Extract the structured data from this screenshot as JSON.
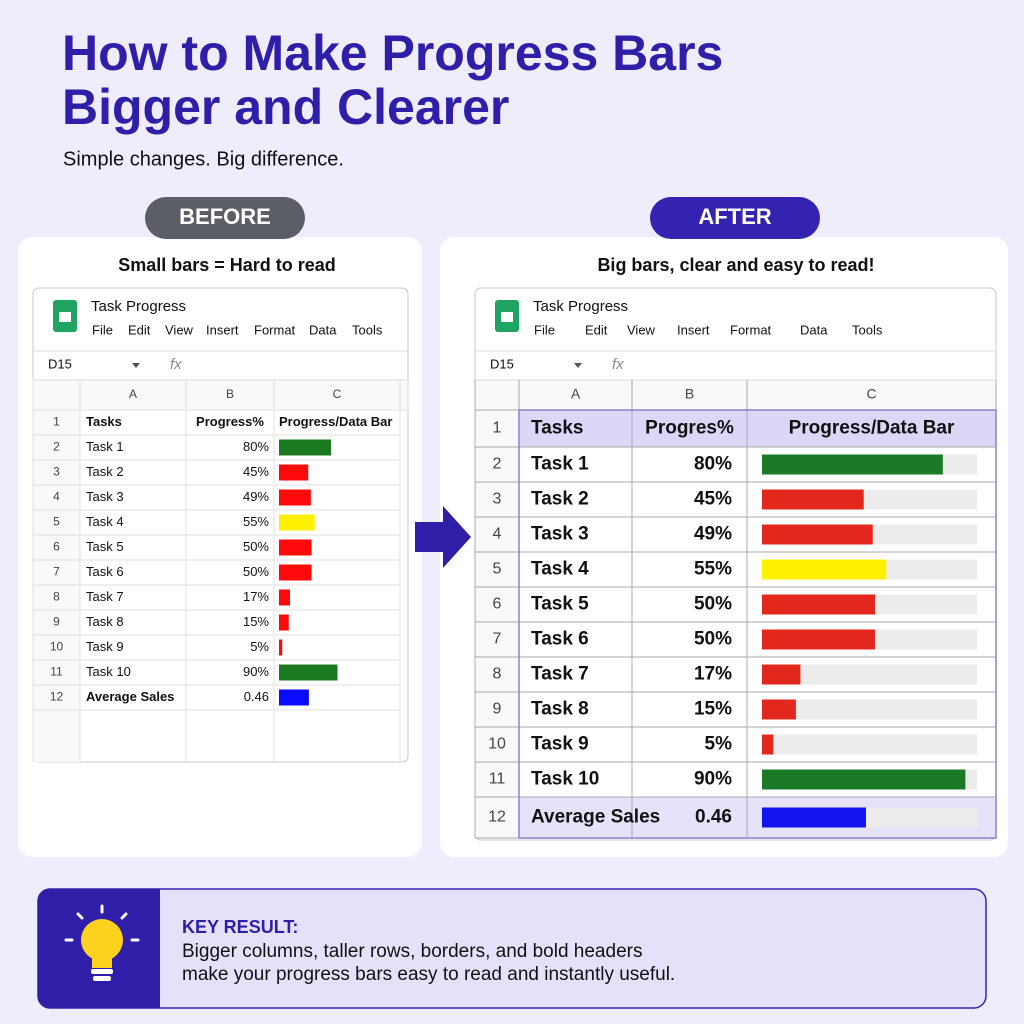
{
  "header": {
    "title_lines": [
      "How to Make Progress Bars",
      "Bigger and Clearer"
    ],
    "subtitle": "Simple changes. Big difference."
  },
  "before": {
    "badge": "BEFORE",
    "caption": "Small bars = Hard to read",
    "sheet": {
      "doc_title": "Task Progress",
      "menu": [
        "File",
        "Edit",
        "View",
        "Insert",
        "Format",
        "Data",
        "Tools"
      ],
      "cell_ref": "D15",
      "fx": "fx",
      "columns": [
        "A",
        "B",
        "C"
      ],
      "header_row_num": "1",
      "headers": [
        "Tasks",
        "Progress%",
        "Progress/Data Bar"
      ],
      "rows": [
        {
          "num": "2",
          "task": "Task 1",
          "progress": "80%",
          "bar_color": "#1b7a1f"
        },
        {
          "num": "3",
          "task": "Task 2",
          "progress": "45%",
          "bar_color": "#ff0a0a"
        },
        {
          "num": "4",
          "task": "Task 3",
          "progress": "49%",
          "bar_color": "#ff0a0a"
        },
        {
          "num": "5",
          "task": "Task 4",
          "progress": "55%",
          "bar_color": "#fff000"
        },
        {
          "num": "6",
          "task": "Task 5",
          "progress": "50%",
          "bar_color": "#ff0a0a"
        },
        {
          "num": "7",
          "task": "Task 6",
          "progress": "50%",
          "bar_color": "#ff0a0a"
        },
        {
          "num": "8",
          "task": "Task 7",
          "progress": "17%",
          "bar_color": "#ff0a0a"
        },
        {
          "num": "9",
          "task": "Task 8",
          "progress": "15%",
          "bar_color": "#ff0a0a"
        },
        {
          "num": "10",
          "task": "Task 9",
          "progress": "5%",
          "bar_color": "#ff0a0a"
        },
        {
          "num": "11",
          "task": "Task 10",
          "progress": "90%",
          "bar_color": "#1b7a1f"
        },
        {
          "num": "12",
          "task": "Average Sales",
          "progress": "0.46",
          "bar_color": "#0a0aff"
        }
      ]
    }
  },
  "after": {
    "badge": "AFTER",
    "caption": "Big bars, clear and easy to read!",
    "sheet": {
      "doc_title": "Task Progress",
      "menu": [
        "File",
        "Edit",
        "View",
        "Insert",
        "Format",
        "Data",
        "Tools"
      ],
      "cell_ref": "D15",
      "fx": "fx",
      "columns": [
        "A",
        "B",
        "C"
      ],
      "header_row_num": "1",
      "headers": [
        "Tasks",
        "Progres%",
        "Progress/Data Bar"
      ],
      "rows": [
        {
          "num": "2",
          "task": "Task 1",
          "progress": "80%",
          "bar_color": "#1b7a28"
        },
        {
          "num": "3",
          "task": "Task 2",
          "progress": "45%",
          "bar_color": "#e2281c"
        },
        {
          "num": "4",
          "task": "Task 3",
          "progress": "49%",
          "bar_color": "#e2281c"
        },
        {
          "num": "5",
          "task": "Task 4",
          "progress": "55%",
          "bar_color": "#fff200"
        },
        {
          "num": "6",
          "task": "Task 5",
          "progress": "50%",
          "bar_color": "#e2281c"
        },
        {
          "num": "7",
          "task": "Task 6",
          "progress": "50%",
          "bar_color": "#e2281c"
        },
        {
          "num": "8",
          "task": "Task 7",
          "progress": "17%",
          "bar_color": "#e2281c"
        },
        {
          "num": "9",
          "task": "Task 8",
          "progress": "15%",
          "bar_color": "#e2281c"
        },
        {
          "num": "10",
          "task": "Task 9",
          "progress": "5%",
          "bar_color": "#e2281c"
        },
        {
          "num": "11",
          "task": "Task 10",
          "progress": "90%",
          "bar_color": "#1b7a28"
        },
        {
          "num": "12",
          "task": "Average Sales",
          "progress": "0.46",
          "bar_color": "#1414ee"
        }
      ]
    }
  },
  "key_result": {
    "label": "KEY RESULT:",
    "lines": [
      "Bigger columns, taller rows, borders, and bold headers",
      "make your progress bars easy to read and instantly useful."
    ]
  }
}
